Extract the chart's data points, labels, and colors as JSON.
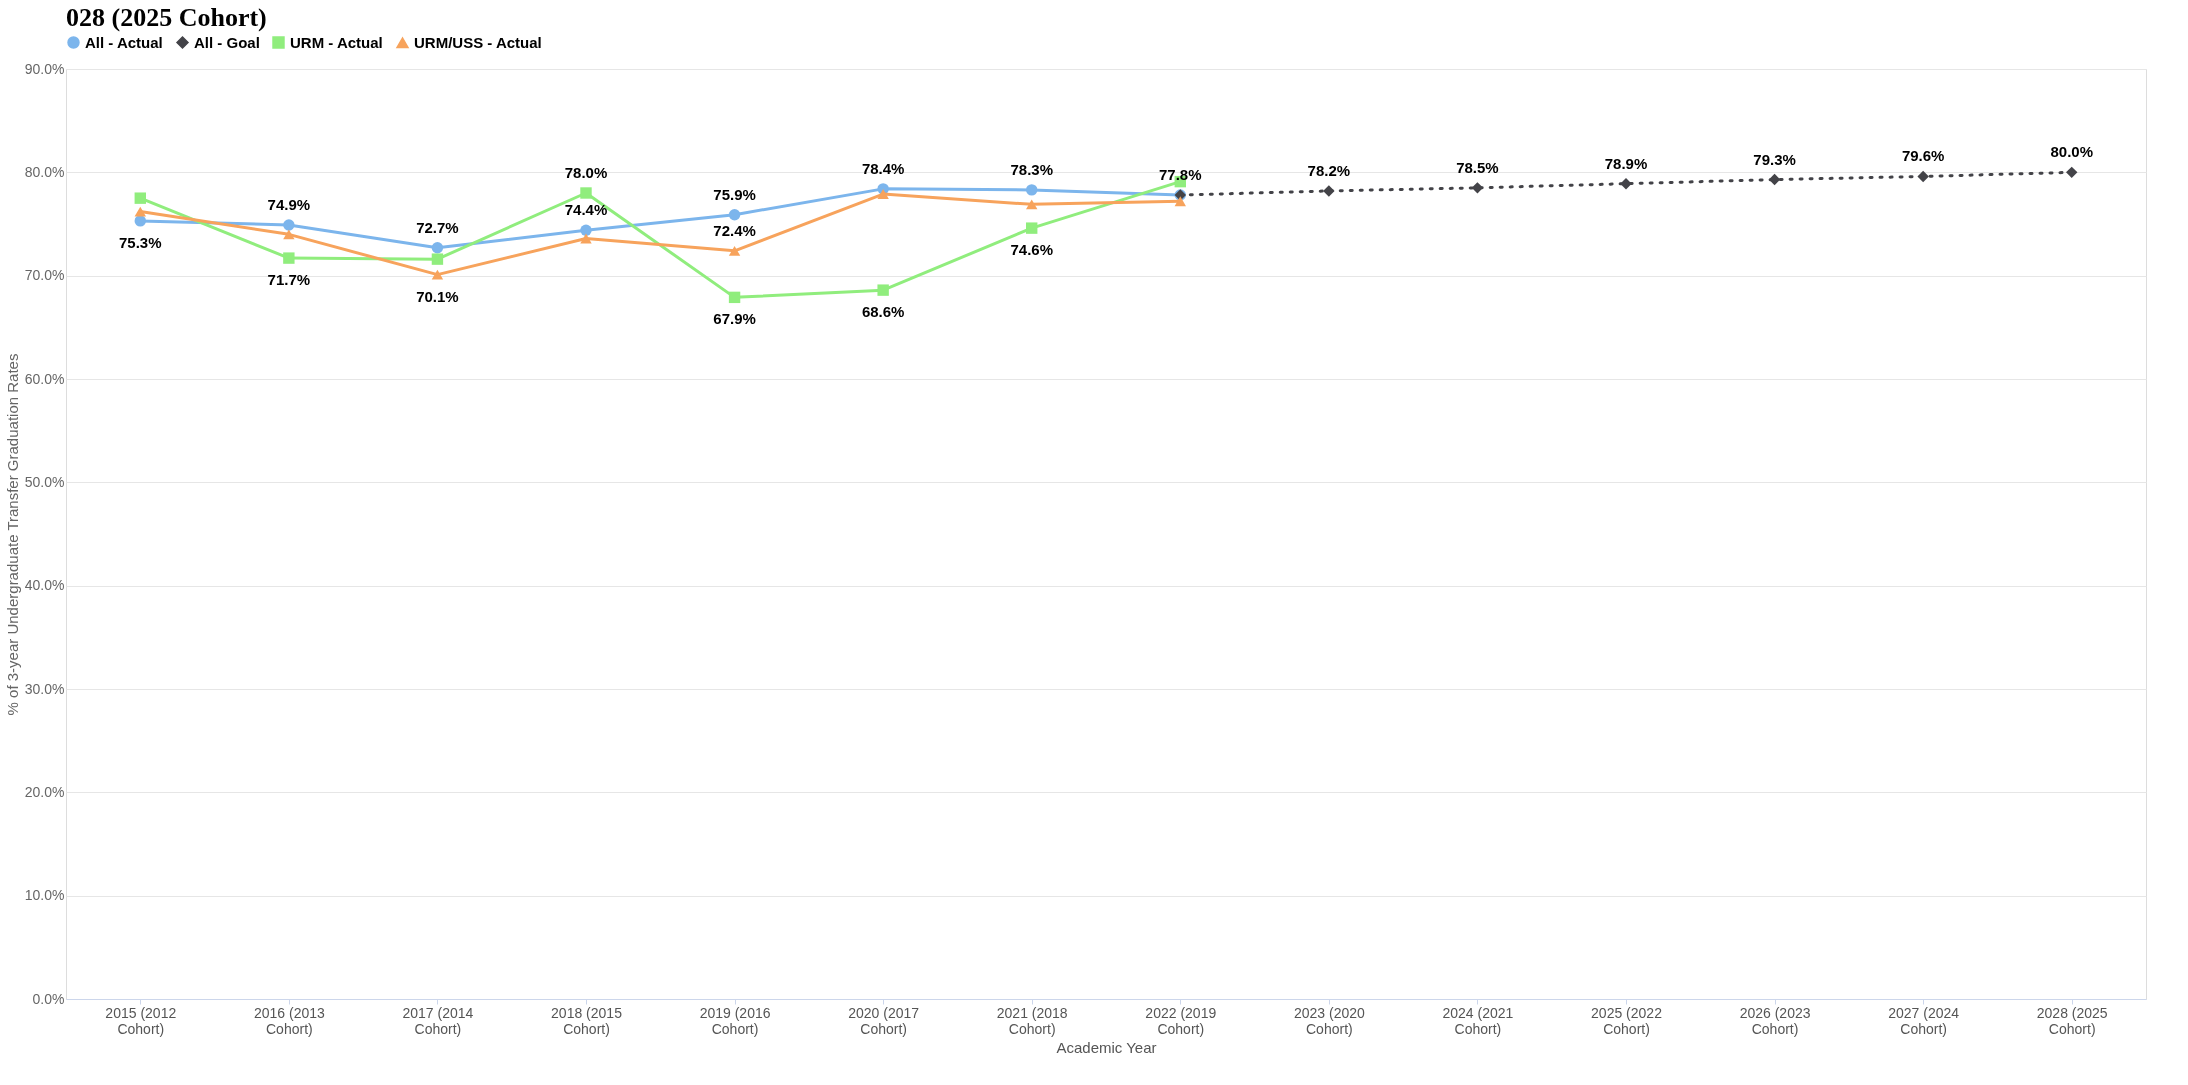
{
  "chart_data": {
    "type": "line",
    "title": "028 (2025 Cohort)",
    "xlabel": "Academic Year",
    "ylabel": "% of 3-year Undergraduate Transfer Graduation Rates",
    "categories": [
      "2015 (2012 Cohort)",
      "2016 (2013 Cohort)",
      "2017 (2014 Cohort)",
      "2018 (2015 Cohort)",
      "2019 (2016 Cohort)",
      "2020 (2017 Cohort)",
      "2021 (2018 Cohort)",
      "2022 (2019 Cohort)",
      "2023 (2020 Cohort)",
      "2024 (2021 Cohort)",
      "2025 (2022 Cohort)",
      "2026 (2023 Cohort)",
      "2027 (2024 Cohort)",
      "2028 (2025 Cohort)"
    ],
    "series": [
      {
        "name": "All - Actual",
        "color": "#7cb5ec",
        "marker": "circle",
        "line_style": "solid",
        "values": [
          75.3,
          74.9,
          72.7,
          74.4,
          75.9,
          78.4,
          78.3,
          77.8,
          null,
          null,
          null,
          null,
          null,
          null
        ],
        "value_labels": [
          "75.3%",
          "74.9%",
          "72.7%",
          "74.4%",
          "75.9%",
          "78.4%",
          "78.3%",
          "77.8%",
          null,
          null,
          null,
          null,
          null,
          null
        ]
      },
      {
        "name": "All - Goal",
        "color": "#434348",
        "marker": "diamond",
        "line_style": "dotted",
        "values": [
          null,
          null,
          null,
          null,
          null,
          null,
          null,
          77.8,
          78.2,
          78.5,
          78.9,
          79.3,
          79.6,
          80.0
        ],
        "value_labels": [
          null,
          null,
          null,
          null,
          null,
          null,
          null,
          null,
          "78.2%",
          "78.5%",
          "78.9%",
          "79.3%",
          "79.6%",
          "80.0%"
        ]
      },
      {
        "name": "URM - Actual",
        "color": "#90ed7d",
        "marker": "square",
        "line_style": "solid",
        "values": [
          77.5,
          71.7,
          71.6,
          78.0,
          67.9,
          68.6,
          74.6,
          79.1,
          null,
          null,
          null,
          null,
          null,
          null
        ],
        "value_labels": [
          null,
          "71.7%",
          null,
          "78.0%",
          "67.9%",
          "68.6%",
          "74.6%",
          null,
          null,
          null,
          null,
          null,
          null,
          null
        ]
      },
      {
        "name": "URM/USS - Actual",
        "color": "#f7a35c",
        "marker": "triangle",
        "line_style": "solid",
        "values": [
          76.2,
          74.0,
          70.1,
          73.6,
          72.4,
          77.9,
          76.9,
          77.2,
          null,
          null,
          null,
          null,
          null,
          null
        ],
        "value_labels": [
          null,
          null,
          "70.1%",
          null,
          "72.4%",
          null,
          null,
          null,
          null,
          null,
          null,
          null,
          null,
          null
        ]
      }
    ],
    "ylim": [
      0,
      90
    ],
    "yticks": [
      {
        "value": 0,
        "label": "0.0%"
      },
      {
        "value": 10,
        "label": "10.0%"
      },
      {
        "value": 20,
        "label": "20.0%"
      },
      {
        "value": 30,
        "label": "30.0%"
      },
      {
        "value": 40,
        "label": "40.0%"
      },
      {
        "value": 50,
        "label": "50.0%"
      },
      {
        "value": 60,
        "label": "60.0%"
      },
      {
        "value": 70,
        "label": "70.0%"
      },
      {
        "value": 80,
        "label": "80.0%"
      },
      {
        "value": 90,
        "label": "90.0%"
      }
    ],
    "grid": "y",
    "legend": "top"
  }
}
